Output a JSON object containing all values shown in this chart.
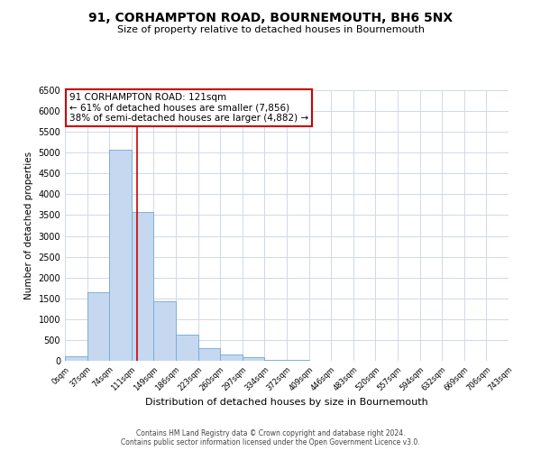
{
  "title": "91, CORHAMPTON ROAD, BOURNEMOUTH, BH6 5NX",
  "subtitle": "Size of property relative to detached houses in Bournemouth",
  "xlabel": "Distribution of detached houses by size in Bournemouth",
  "ylabel": "Number of detached properties",
  "bar_color": "#c5d8f0",
  "bar_edge_color": "#6fa8d6",
  "bin_edges": [
    0,
    37,
    74,
    111,
    148,
    185,
    222,
    259,
    296,
    333,
    370,
    407,
    444,
    481,
    518,
    555,
    592,
    629,
    666,
    703,
    740
  ],
  "bin_labels": [
    "0sqm",
    "37sqm",
    "74sqm",
    "111sqm",
    "149sqm",
    "186sqm",
    "223sqm",
    "260sqm",
    "297sqm",
    "334sqm",
    "372sqm",
    "409sqm",
    "446sqm",
    "483sqm",
    "520sqm",
    "557sqm",
    "594sqm",
    "632sqm",
    "669sqm",
    "706sqm",
    "743sqm"
  ],
  "bar_heights": [
    100,
    1650,
    5080,
    3570,
    1430,
    620,
    300,
    155,
    80,
    30,
    20,
    10,
    5,
    0,
    0,
    0,
    0,
    0,
    0,
    0
  ],
  "ylim": [
    0,
    6500
  ],
  "yticks": [
    0,
    500,
    1000,
    1500,
    2000,
    2500,
    3000,
    3500,
    4000,
    4500,
    5000,
    5500,
    6000,
    6500
  ],
  "vline_x": 121,
  "vline_color": "#cc0000",
  "annotation_title": "91 CORHAMPTON ROAD: 121sqm",
  "annotation_line1": "← 61% of detached houses are smaller (7,856)",
  "annotation_line2": "38% of semi-detached houses are larger (4,882) →",
  "annotation_box_color": "#ffffff",
  "annotation_box_edge_color": "#cc0000",
  "footer1": "Contains HM Land Registry data © Crown copyright and database right 2024.",
  "footer2": "Contains public sector information licensed under the Open Government Licence v3.0.",
  "background_color": "#ffffff",
  "grid_color": "#d0d8e8"
}
